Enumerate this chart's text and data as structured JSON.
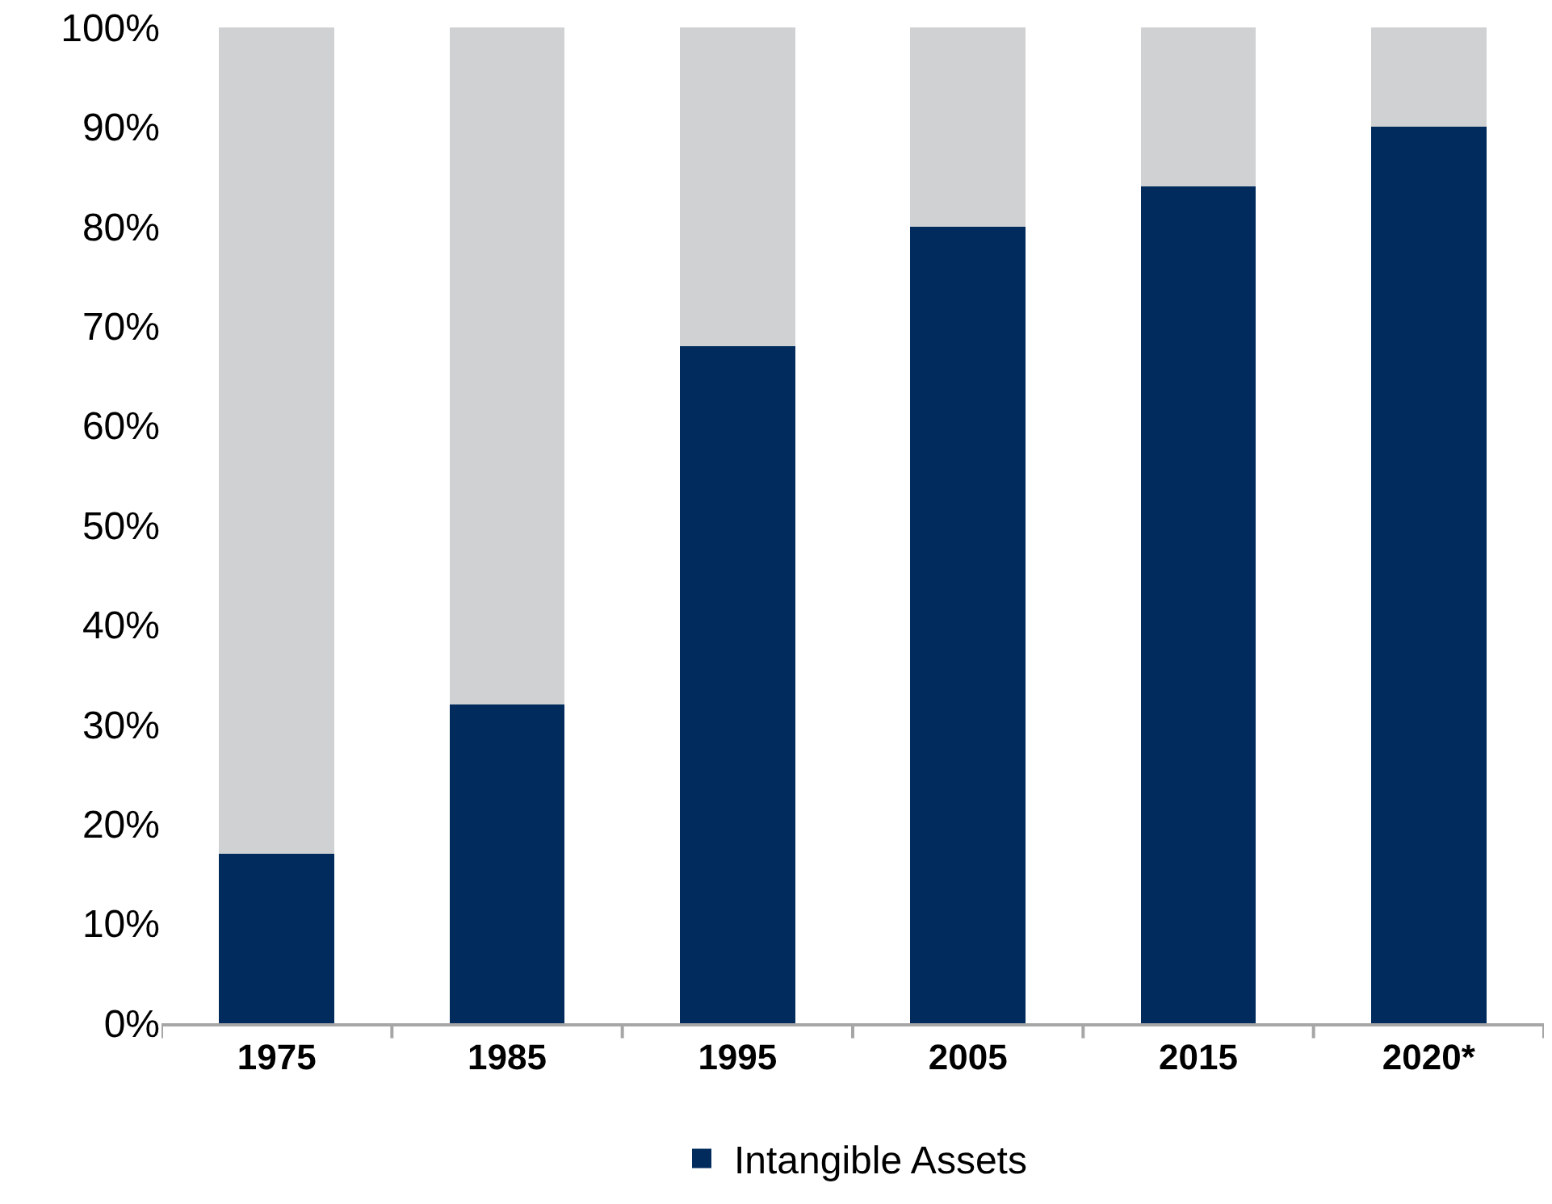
{
  "chart_data": {
    "type": "bar",
    "stacked": true,
    "categories": [
      "1975",
      "1985",
      "1995",
      "2005",
      "2015",
      "2020*"
    ],
    "series": [
      {
        "name": "Intangible Assets",
        "color": "#002b5c",
        "values": [
          17,
          32,
          68,
          80,
          84,
          90
        ]
      },
      {
        "color": "#d0d1d3",
        "values": [
          83,
          68,
          32,
          20,
          16,
          10
        ]
      }
    ],
    "ylim": [
      0,
      100
    ],
    "yticks": [
      {
        "value": 0,
        "label": "0%"
      },
      {
        "value": 10,
        "label": "10%"
      },
      {
        "value": 20,
        "label": "20%"
      },
      {
        "value": 30,
        "label": "30%"
      },
      {
        "value": 40,
        "label": "40%"
      },
      {
        "value": 50,
        "label": "50%"
      },
      {
        "value": 60,
        "label": "60%"
      },
      {
        "value": 70,
        "label": "70%"
      },
      {
        "value": 80,
        "label": "80%"
      },
      {
        "value": 90,
        "label": "90%"
      },
      {
        "value": 100,
        "label": "100%"
      }
    ],
    "legend": "bottom"
  }
}
